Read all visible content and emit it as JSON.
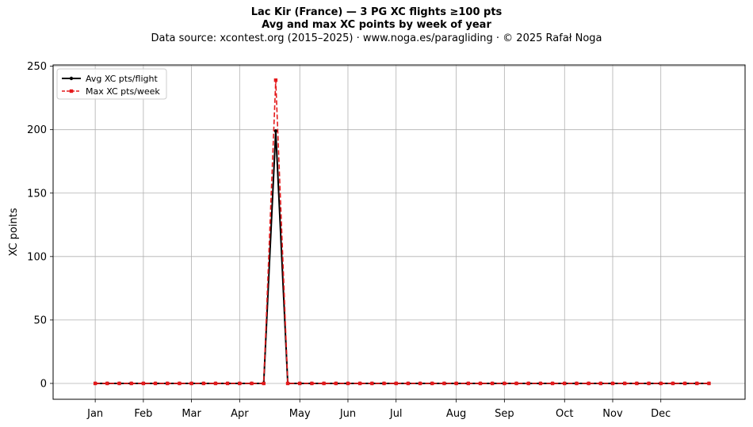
{
  "header": {
    "title_line1": "Lac Kir (France)  —  3 PG XC flights ≥100 pts",
    "title_line2": "Avg and max XC points by week of year",
    "subtitle": "Data source: xcontest.org (2015–2025)  ·  www.noga.es/paragliding  ·  © 2025 Rafał Noga"
  },
  "chart_data": {
    "type": "line",
    "title": "Lac Kir (France)  —  3 PG XC flights ≥100 pts",
    "subtitle": "Avg and max XC points by week of year",
    "xlabel": "",
    "ylabel": "XC points",
    "xlim": [
      -2.5,
      55
    ],
    "ylim": [
      -12.5,
      251
    ],
    "yticks": [
      0,
      50,
      100,
      150,
      200,
      250
    ],
    "xticks": [
      {
        "label": "Jan",
        "week": 1
      },
      {
        "label": "Feb",
        "week": 5
      },
      {
        "label": "Mar",
        "week": 9
      },
      {
        "label": "Apr",
        "week": 13
      },
      {
        "label": "May",
        "week": 18
      },
      {
        "label": "Jun",
        "week": 22
      },
      {
        "label": "Jul",
        "week": 26
      },
      {
        "label": "Aug",
        "week": 31
      },
      {
        "label": "Sep",
        "week": 35
      },
      {
        "label": "Oct",
        "week": 40
      },
      {
        "label": "Nov",
        "week": 44
      },
      {
        "label": "Dec",
        "week": 48
      }
    ],
    "grid": true,
    "legend_position": "top-left",
    "x": [
      1,
      2,
      3,
      4,
      5,
      6,
      7,
      8,
      9,
      10,
      11,
      12,
      13,
      14,
      15,
      16,
      17,
      18,
      19,
      20,
      21,
      22,
      23,
      24,
      25,
      26,
      27,
      28,
      29,
      30,
      31,
      32,
      33,
      34,
      35,
      36,
      37,
      38,
      39,
      40,
      41,
      42,
      43,
      44,
      45,
      46,
      47,
      48,
      49,
      50,
      51,
      52
    ],
    "series": [
      {
        "name": "Avg XC pts/flight",
        "color": "#000000",
        "style": "solid-circle",
        "values": [
          0,
          0,
          0,
          0,
          0,
          0,
          0,
          0,
          0,
          0,
          0,
          0,
          0,
          0,
          0,
          199,
          0,
          0,
          0,
          0,
          0,
          0,
          0,
          0,
          0,
          0,
          0,
          0,
          0,
          0,
          0,
          0,
          0,
          0,
          0,
          0,
          0,
          0,
          0,
          0,
          0,
          0,
          0,
          0,
          0,
          0,
          0,
          0,
          0,
          0,
          0,
          0
        ]
      },
      {
        "name": "Max XC pts/week",
        "color": "#e41a1c",
        "style": "dashed-square",
        "values": [
          0,
          0,
          0,
          0,
          0,
          0,
          0,
          0,
          0,
          0,
          0,
          0,
          0,
          0,
          0,
          239,
          0,
          0,
          0,
          0,
          0,
          0,
          0,
          0,
          0,
          0,
          0,
          0,
          0,
          0,
          0,
          0,
          0,
          0,
          0,
          0,
          0,
          0,
          0,
          0,
          0,
          0,
          0,
          0,
          0,
          0,
          0,
          0,
          0,
          0,
          0,
          0
        ]
      }
    ]
  }
}
